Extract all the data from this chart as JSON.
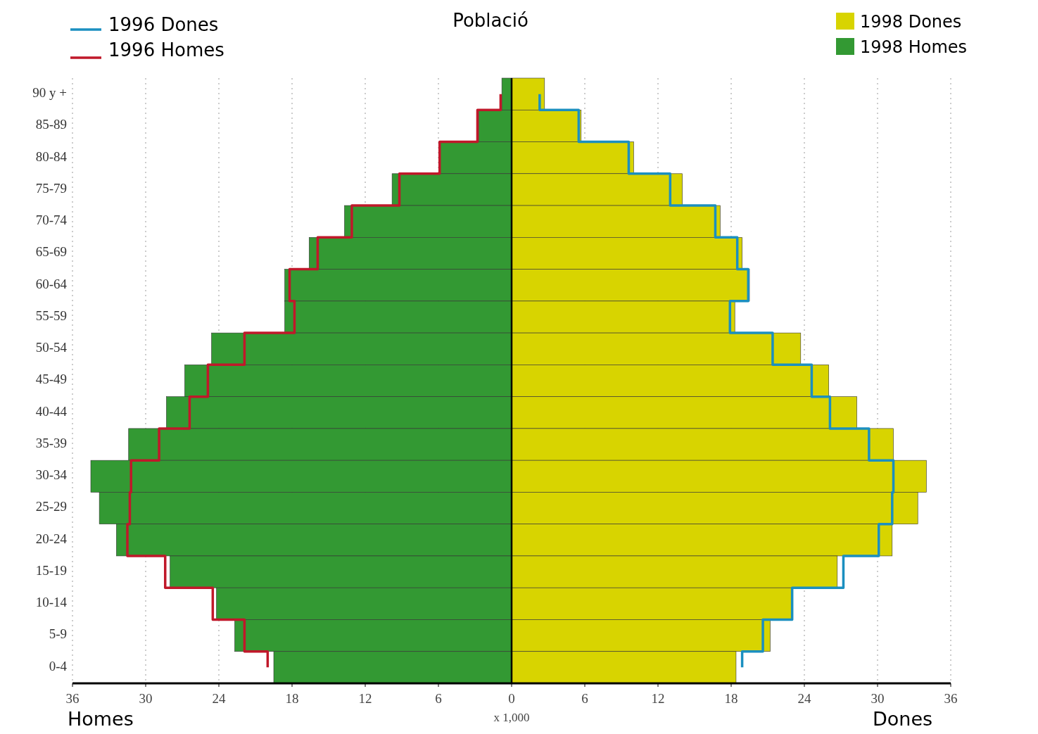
{
  "chart_data": {
    "type": "bar",
    "orientation": "horizontal",
    "title": "Població",
    "xlabel": "x 1,000",
    "categories": [
      "90 y +",
      "85-89",
      "80-84",
      "75-79",
      "70-74",
      "65-69",
      "60-64",
      "55-59",
      "50-54",
      "45-49",
      "40-44",
      "35-39",
      "30-34",
      "25-29",
      "20-24",
      "15-19",
      "10-14",
      "5-9",
      "0-4"
    ],
    "series": [
      {
        "name": "1998 Dones",
        "type": "bar",
        "color": "#d8d400",
        "values": [
          2.7,
          5.7,
          10.0,
          14.0,
          17.1,
          18.9,
          19.5,
          18.3,
          23.7,
          26.0,
          28.3,
          31.3,
          34.0,
          33.3,
          31.2,
          26.7,
          23.0,
          21.2,
          18.4
        ]
      },
      {
        "name": "1998 Homes",
        "type": "bar",
        "color": "#339933",
        "values": [
          -0.8,
          -2.7,
          -5.9,
          -9.8,
          -13.7,
          -16.6,
          -18.6,
          -18.6,
          -24.6,
          -26.8,
          -28.3,
          -31.4,
          -34.5,
          -33.8,
          -32.4,
          -28.0,
          -24.2,
          -22.7,
          -19.5
        ]
      },
      {
        "name": "1996 Dones",
        "type": "step",
        "color": "#1b8fc0",
        "values": [
          2.3,
          5.5,
          9.6,
          13.0,
          16.7,
          18.5,
          19.4,
          17.9,
          21.4,
          24.6,
          26.1,
          29.3,
          31.3,
          31.2,
          30.1,
          27.2,
          23.0,
          20.6,
          18.9
        ]
      },
      {
        "name": "1996 Homes",
        "type": "step",
        "color": "#c0182a",
        "values": [
          -0.9,
          -2.8,
          -5.9,
          -9.2,
          -13.1,
          -15.9,
          -18.2,
          -17.8,
          -21.9,
          -24.9,
          -26.4,
          -28.9,
          -31.2,
          -31.3,
          -31.5,
          -28.4,
          -24.5,
          -21.9,
          -20.0
        ]
      }
    ],
    "xlim": [
      -36,
      36
    ],
    "xticks": [
      {
        "value": -36,
        "label": "36"
      },
      {
        "value": -30,
        "label": "30"
      },
      {
        "value": -24,
        "label": "24"
      },
      {
        "value": -18,
        "label": "18"
      },
      {
        "value": -12,
        "label": "12"
      },
      {
        "value": -6,
        "label": "6"
      },
      0,
      6,
      12,
      18,
      24,
      30,
      36
    ],
    "grid": "x",
    "legend": "top",
    "stacked": true,
    "annotations": [
      "Homes",
      "Dones"
    ]
  }
}
